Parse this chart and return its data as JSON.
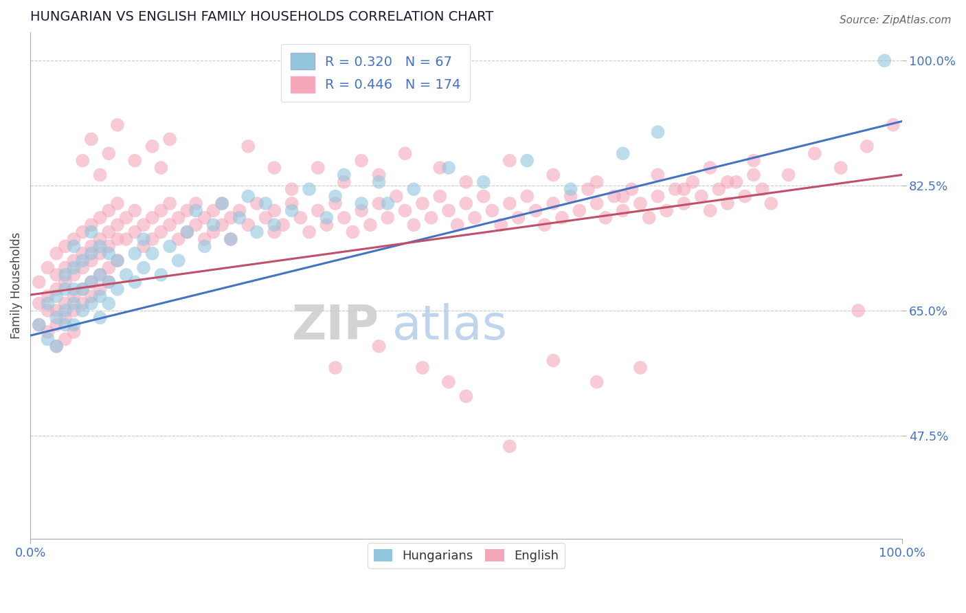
{
  "title": "HUNGARIAN VS ENGLISH FAMILY HOUSEHOLDS CORRELATION CHART",
  "source": "Source: ZipAtlas.com",
  "xlabel": "",
  "ylabel": "Family Households",
  "watermark_zip": "ZIP",
  "watermark_atlas": "atlas",
  "xmin": 0.0,
  "xmax": 1.0,
  "ymin": 0.33,
  "ymax": 1.04,
  "yticks": [
    0.475,
    0.65,
    0.825,
    1.0
  ],
  "ytick_labels": [
    "47.5%",
    "65.0%",
    "82.5%",
    "100.0%"
  ],
  "xtick_labels": [
    "0.0%",
    "100.0%"
  ],
  "xticks": [
    0.0,
    1.0
  ],
  "blue_R": 0.32,
  "blue_N": 67,
  "pink_R": 0.446,
  "pink_N": 174,
  "blue_color": "#92C5DE",
  "pink_color": "#F4A7B9",
  "line_blue": "#4472C4",
  "line_pink": "#C0506A",
  "axis_color": "#4472C4",
  "legend_text_color": "#4472C4",
  "blue_line_y0": 0.615,
  "blue_line_y1": 0.915,
  "pink_line_y0": 0.672,
  "pink_line_y1": 0.84,
  "blue_points": [
    [
      0.01,
      0.63
    ],
    [
      0.02,
      0.66
    ],
    [
      0.02,
      0.61
    ],
    [
      0.03,
      0.67
    ],
    [
      0.03,
      0.64
    ],
    [
      0.03,
      0.6
    ],
    [
      0.04,
      0.68
    ],
    [
      0.04,
      0.65
    ],
    [
      0.04,
      0.63
    ],
    [
      0.04,
      0.7
    ],
    [
      0.05,
      0.66
    ],
    [
      0.05,
      0.63
    ],
    [
      0.05,
      0.68
    ],
    [
      0.05,
      0.71
    ],
    [
      0.05,
      0.74
    ],
    [
      0.06,
      0.65
    ],
    [
      0.06,
      0.68
    ],
    [
      0.06,
      0.72
    ],
    [
      0.07,
      0.66
    ],
    [
      0.07,
      0.69
    ],
    [
      0.07,
      0.73
    ],
    [
      0.07,
      0.76
    ],
    [
      0.08,
      0.64
    ],
    [
      0.08,
      0.67
    ],
    [
      0.08,
      0.7
    ],
    [
      0.08,
      0.74
    ],
    [
      0.09,
      0.66
    ],
    [
      0.09,
      0.69
    ],
    [
      0.09,
      0.73
    ],
    [
      0.1,
      0.68
    ],
    [
      0.1,
      0.72
    ],
    [
      0.11,
      0.7
    ],
    [
      0.12,
      0.69
    ],
    [
      0.12,
      0.73
    ],
    [
      0.13,
      0.71
    ],
    [
      0.13,
      0.75
    ],
    [
      0.14,
      0.73
    ],
    [
      0.15,
      0.7
    ],
    [
      0.16,
      0.74
    ],
    [
      0.17,
      0.72
    ],
    [
      0.18,
      0.76
    ],
    [
      0.19,
      0.79
    ],
    [
      0.2,
      0.74
    ],
    [
      0.21,
      0.77
    ],
    [
      0.22,
      0.8
    ],
    [
      0.23,
      0.75
    ],
    [
      0.24,
      0.78
    ],
    [
      0.25,
      0.81
    ],
    [
      0.26,
      0.76
    ],
    [
      0.27,
      0.8
    ],
    [
      0.28,
      0.77
    ],
    [
      0.3,
      0.79
    ],
    [
      0.32,
      0.82
    ],
    [
      0.34,
      0.78
    ],
    [
      0.35,
      0.81
    ],
    [
      0.36,
      0.84
    ],
    [
      0.38,
      0.8
    ],
    [
      0.4,
      0.83
    ],
    [
      0.41,
      0.8
    ],
    [
      0.44,
      0.82
    ],
    [
      0.48,
      0.85
    ],
    [
      0.52,
      0.83
    ],
    [
      0.57,
      0.86
    ],
    [
      0.62,
      0.82
    ],
    [
      0.68,
      0.87
    ],
    [
      0.72,
      0.9
    ],
    [
      0.98,
      1.0
    ]
  ],
  "pink_points": [
    [
      0.01,
      0.69
    ],
    [
      0.01,
      0.66
    ],
    [
      0.01,
      0.63
    ],
    [
      0.02,
      0.71
    ],
    [
      0.02,
      0.67
    ],
    [
      0.02,
      0.65
    ],
    [
      0.02,
      0.62
    ],
    [
      0.03,
      0.73
    ],
    [
      0.03,
      0.7
    ],
    [
      0.03,
      0.68
    ],
    [
      0.03,
      0.65
    ],
    [
      0.03,
      0.63
    ],
    [
      0.03,
      0.6
    ],
    [
      0.04,
      0.74
    ],
    [
      0.04,
      0.71
    ],
    [
      0.04,
      0.69
    ],
    [
      0.04,
      0.66
    ],
    [
      0.04,
      0.64
    ],
    [
      0.04,
      0.61
    ],
    [
      0.05,
      0.75
    ],
    [
      0.05,
      0.72
    ],
    [
      0.05,
      0.7
    ],
    [
      0.05,
      0.67
    ],
    [
      0.05,
      0.65
    ],
    [
      0.05,
      0.62
    ],
    [
      0.06,
      0.76
    ],
    [
      0.06,
      0.73
    ],
    [
      0.06,
      0.71
    ],
    [
      0.06,
      0.68
    ],
    [
      0.06,
      0.66
    ],
    [
      0.07,
      0.77
    ],
    [
      0.07,
      0.74
    ],
    [
      0.07,
      0.72
    ],
    [
      0.07,
      0.69
    ],
    [
      0.07,
      0.67
    ],
    [
      0.08,
      0.78
    ],
    [
      0.08,
      0.75
    ],
    [
      0.08,
      0.73
    ],
    [
      0.08,
      0.7
    ],
    [
      0.08,
      0.68
    ],
    [
      0.09,
      0.79
    ],
    [
      0.09,
      0.76
    ],
    [
      0.09,
      0.74
    ],
    [
      0.09,
      0.71
    ],
    [
      0.09,
      0.69
    ],
    [
      0.1,
      0.8
    ],
    [
      0.1,
      0.77
    ],
    [
      0.1,
      0.75
    ],
    [
      0.1,
      0.72
    ],
    [
      0.11,
      0.78
    ],
    [
      0.11,
      0.75
    ],
    [
      0.12,
      0.79
    ],
    [
      0.12,
      0.76
    ],
    [
      0.13,
      0.77
    ],
    [
      0.13,
      0.74
    ],
    [
      0.14,
      0.78
    ],
    [
      0.14,
      0.75
    ],
    [
      0.15,
      0.79
    ],
    [
      0.15,
      0.76
    ],
    [
      0.16,
      0.8
    ],
    [
      0.16,
      0.77
    ],
    [
      0.17,
      0.78
    ],
    [
      0.17,
      0.75
    ],
    [
      0.18,
      0.79
    ],
    [
      0.18,
      0.76
    ],
    [
      0.19,
      0.8
    ],
    [
      0.19,
      0.77
    ],
    [
      0.2,
      0.78
    ],
    [
      0.2,
      0.75
    ],
    [
      0.21,
      0.79
    ],
    [
      0.21,
      0.76
    ],
    [
      0.22,
      0.8
    ],
    [
      0.22,
      0.77
    ],
    [
      0.23,
      0.78
    ],
    [
      0.23,
      0.75
    ],
    [
      0.24,
      0.79
    ],
    [
      0.25,
      0.77
    ],
    [
      0.26,
      0.8
    ],
    [
      0.27,
      0.78
    ],
    [
      0.28,
      0.76
    ],
    [
      0.28,
      0.79
    ],
    [
      0.29,
      0.77
    ],
    [
      0.3,
      0.8
    ],
    [
      0.31,
      0.78
    ],
    [
      0.32,
      0.76
    ],
    [
      0.33,
      0.79
    ],
    [
      0.34,
      0.77
    ],
    [
      0.35,
      0.8
    ],
    [
      0.36,
      0.78
    ],
    [
      0.37,
      0.76
    ],
    [
      0.38,
      0.79
    ],
    [
      0.39,
      0.77
    ],
    [
      0.4,
      0.8
    ],
    [
      0.41,
      0.78
    ],
    [
      0.42,
      0.81
    ],
    [
      0.43,
      0.79
    ],
    [
      0.44,
      0.77
    ],
    [
      0.45,
      0.8
    ],
    [
      0.46,
      0.78
    ],
    [
      0.47,
      0.81
    ],
    [
      0.48,
      0.79
    ],
    [
      0.49,
      0.77
    ],
    [
      0.5,
      0.8
    ],
    [
      0.51,
      0.78
    ],
    [
      0.52,
      0.81
    ],
    [
      0.53,
      0.79
    ],
    [
      0.54,
      0.77
    ],
    [
      0.55,
      0.8
    ],
    [
      0.56,
      0.78
    ],
    [
      0.57,
      0.81
    ],
    [
      0.58,
      0.79
    ],
    [
      0.59,
      0.77
    ],
    [
      0.6,
      0.8
    ],
    [
      0.61,
      0.78
    ],
    [
      0.62,
      0.81
    ],
    [
      0.63,
      0.79
    ],
    [
      0.64,
      0.82
    ],
    [
      0.65,
      0.8
    ],
    [
      0.66,
      0.78
    ],
    [
      0.67,
      0.81
    ],
    [
      0.68,
      0.79
    ],
    [
      0.69,
      0.82
    ],
    [
      0.7,
      0.8
    ],
    [
      0.71,
      0.78
    ],
    [
      0.72,
      0.81
    ],
    [
      0.73,
      0.79
    ],
    [
      0.74,
      0.82
    ],
    [
      0.75,
      0.8
    ],
    [
      0.76,
      0.83
    ],
    [
      0.77,
      0.81
    ],
    [
      0.78,
      0.79
    ],
    [
      0.79,
      0.82
    ],
    [
      0.8,
      0.8
    ],
    [
      0.81,
      0.83
    ],
    [
      0.82,
      0.81
    ],
    [
      0.83,
      0.84
    ],
    [
      0.84,
      0.82
    ],
    [
      0.85,
      0.8
    ],
    [
      0.06,
      0.86
    ],
    [
      0.07,
      0.89
    ],
    [
      0.08,
      0.84
    ],
    [
      0.09,
      0.87
    ],
    [
      0.1,
      0.91
    ],
    [
      0.12,
      0.86
    ],
    [
      0.14,
      0.88
    ],
    [
      0.15,
      0.85
    ],
    [
      0.16,
      0.89
    ],
    [
      0.25,
      0.88
    ],
    [
      0.28,
      0.85
    ],
    [
      0.3,
      0.82
    ],
    [
      0.33,
      0.85
    ],
    [
      0.36,
      0.83
    ],
    [
      0.38,
      0.86
    ],
    [
      0.4,
      0.84
    ],
    [
      0.43,
      0.87
    ],
    [
      0.47,
      0.85
    ],
    [
      0.5,
      0.83
    ],
    [
      0.55,
      0.86
    ],
    [
      0.6,
      0.84
    ],
    [
      0.65,
      0.83
    ],
    [
      0.68,
      0.81
    ],
    [
      0.72,
      0.84
    ],
    [
      0.75,
      0.82
    ],
    [
      0.78,
      0.85
    ],
    [
      0.8,
      0.83
    ],
    [
      0.83,
      0.86
    ],
    [
      0.87,
      0.84
    ],
    [
      0.9,
      0.87
    ],
    [
      0.93,
      0.85
    ],
    [
      0.96,
      0.88
    ],
    [
      0.99,
      0.91
    ],
    [
      0.5,
      0.53
    ],
    [
      0.55,
      0.46
    ],
    [
      0.95,
      0.65
    ],
    [
      0.35,
      0.57
    ],
    [
      0.4,
      0.6
    ],
    [
      0.45,
      0.57
    ],
    [
      0.48,
      0.55
    ],
    [
      0.6,
      0.58
    ],
    [
      0.65,
      0.55
    ],
    [
      0.7,
      0.57
    ]
  ]
}
